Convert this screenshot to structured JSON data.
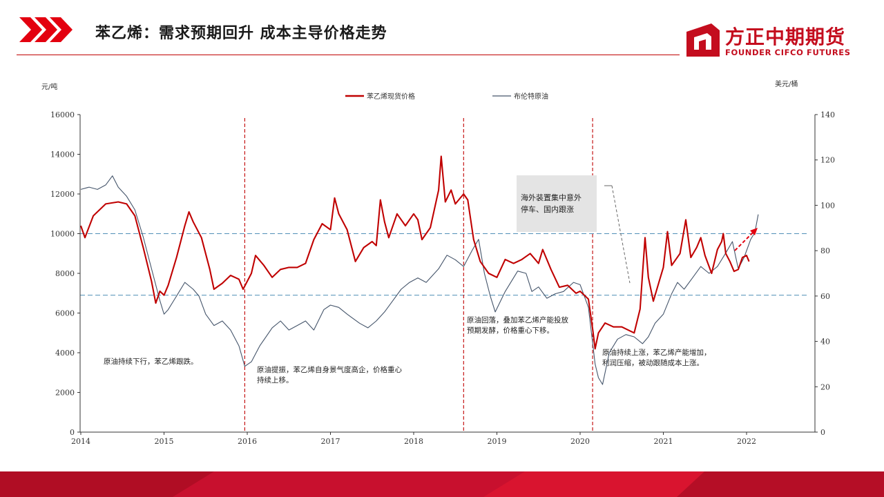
{
  "header": {
    "title": "苯乙烯：需求预期回升  成本主导价格走势",
    "brand_cn": "方正中期期货",
    "brand_en": "FOUNDER CIFCO FUTURES"
  },
  "colors": {
    "brand_red": "#c40d1e",
    "styrene_line": "#c00000",
    "brent_line": "#44546a",
    "event_line": "#c00000",
    "ref_line": "#4f8fb6",
    "callout_bg": "#e4e4e4"
  },
  "chart_data": {
    "type": "line",
    "left_unit": "元/吨",
    "right_unit": "美元/桶",
    "x_ticks": [
      "2014",
      "2015",
      "2016",
      "2017",
      "2018",
      "2019",
      "2020",
      "2021",
      "2022"
    ],
    "left_ticks": [
      "0",
      "2000",
      "4000",
      "6000",
      "8000",
      "10000",
      "12000",
      "14000",
      "16000"
    ],
    "right_ticks": [
      "0",
      "20",
      "40",
      "60",
      "80",
      "100",
      "120",
      "140"
    ],
    "xlim": [
      2014,
      2022.85
    ],
    "ylim_left": [
      0,
      16000
    ],
    "ylim_right": [
      0,
      140
    ],
    "grid": false,
    "legend_position": "top-center",
    "series": [
      {
        "name": "苯乙烯现货价格",
        "axis": "left",
        "points": [
          [
            2014.0,
            10400
          ],
          [
            2014.05,
            9800
          ],
          [
            2014.15,
            10900
          ],
          [
            2014.3,
            11500
          ],
          [
            2014.45,
            11600
          ],
          [
            2014.55,
            11500
          ],
          [
            2014.65,
            10900
          ],
          [
            2014.75,
            9300
          ],
          [
            2014.85,
            7600
          ],
          [
            2014.9,
            6500
          ],
          [
            2014.95,
            7100
          ],
          [
            2015.0,
            6900
          ],
          [
            2015.05,
            7400
          ],
          [
            2015.15,
            8800
          ],
          [
            2015.25,
            10400
          ],
          [
            2015.3,
            11100
          ],
          [
            2015.35,
            10600
          ],
          [
            2015.45,
            9800
          ],
          [
            2015.55,
            8200
          ],
          [
            2015.6,
            7200
          ],
          [
            2015.7,
            7500
          ],
          [
            2015.8,
            7900
          ],
          [
            2015.9,
            7700
          ],
          [
            2015.95,
            7200
          ],
          [
            2016.0,
            7600
          ],
          [
            2016.05,
            8000
          ],
          [
            2016.1,
            8900
          ],
          [
            2016.2,
            8400
          ],
          [
            2016.3,
            7800
          ],
          [
            2016.4,
            8200
          ],
          [
            2016.5,
            8300
          ],
          [
            2016.6,
            8300
          ],
          [
            2016.7,
            8500
          ],
          [
            2016.8,
            9700
          ],
          [
            2016.9,
            10500
          ],
          [
            2017.0,
            10200
          ],
          [
            2017.05,
            11800
          ],
          [
            2017.1,
            11000
          ],
          [
            2017.2,
            10200
          ],
          [
            2017.3,
            8600
          ],
          [
            2017.4,
            9300
          ],
          [
            2017.5,
            9600
          ],
          [
            2017.55,
            9400
          ],
          [
            2017.6,
            11700
          ],
          [
            2017.65,
            10600
          ],
          [
            2017.7,
            9800
          ],
          [
            2017.8,
            11000
          ],
          [
            2017.9,
            10400
          ],
          [
            2018.0,
            11000
          ],
          [
            2018.05,
            10700
          ],
          [
            2018.1,
            9700
          ],
          [
            2018.2,
            10300
          ],
          [
            2018.3,
            12200
          ],
          [
            2018.33,
            13900
          ],
          [
            2018.38,
            11600
          ],
          [
            2018.45,
            12200
          ],
          [
            2018.5,
            11500
          ],
          [
            2018.6,
            12000
          ],
          [
            2018.65,
            11700
          ],
          [
            2018.72,
            9700
          ],
          [
            2018.8,
            8600
          ],
          [
            2018.9,
            8000
          ],
          [
            2019.0,
            7800
          ],
          [
            2019.1,
            8700
          ],
          [
            2019.2,
            8500
          ],
          [
            2019.3,
            8700
          ],
          [
            2019.4,
            9000
          ],
          [
            2019.5,
            8500
          ],
          [
            2019.55,
            9200
          ],
          [
            2019.65,
            8200
          ],
          [
            2019.75,
            7300
          ],
          [
            2019.85,
            7400
          ],
          [
            2019.95,
            7000
          ],
          [
            2020.0,
            7100
          ],
          [
            2020.1,
            6700
          ],
          [
            2020.15,
            5200
          ],
          [
            2020.18,
            4200
          ],
          [
            2020.22,
            5000
          ],
          [
            2020.3,
            5500
          ],
          [
            2020.4,
            5300
          ],
          [
            2020.5,
            5300
          ],
          [
            2020.6,
            5100
          ],
          [
            2020.65,
            5000
          ],
          [
            2020.72,
            6200
          ],
          [
            2020.78,
            9800
          ],
          [
            2020.82,
            7800
          ],
          [
            2020.88,
            6600
          ],
          [
            2020.95,
            7600
          ],
          [
            2021.0,
            8300
          ],
          [
            2021.05,
            10100
          ],
          [
            2021.1,
            8400
          ],
          [
            2021.2,
            9000
          ],
          [
            2021.27,
            10700
          ],
          [
            2021.33,
            8800
          ],
          [
            2021.4,
            9300
          ],
          [
            2021.45,
            9800
          ],
          [
            2021.5,
            8900
          ],
          [
            2021.58,
            8000
          ],
          [
            2021.65,
            9200
          ],
          [
            2021.7,
            9600
          ],
          [
            2021.72,
            10000
          ],
          [
            2021.75,
            9000
          ],
          [
            2021.8,
            8600
          ],
          [
            2021.85,
            8100
          ],
          [
            2021.9,
            8200
          ],
          [
            2021.95,
            8800
          ],
          [
            2022.0,
            8900
          ],
          [
            2022.03,
            8600
          ]
        ]
      },
      {
        "name": "布伦特原油",
        "axis": "right",
        "points": [
          [
            2014.0,
            107
          ],
          [
            2014.1,
            108
          ],
          [
            2014.2,
            107
          ],
          [
            2014.3,
            109
          ],
          [
            2014.38,
            113
          ],
          [
            2014.45,
            108
          ],
          [
            2014.55,
            104
          ],
          [
            2014.65,
            98
          ],
          [
            2014.75,
            86
          ],
          [
            2014.85,
            72
          ],
          [
            2014.95,
            58
          ],
          [
            2015.0,
            52
          ],
          [
            2015.05,
            54
          ],
          [
            2015.15,
            60
          ],
          [
            2015.25,
            66
          ],
          [
            2015.35,
            63
          ],
          [
            2015.42,
            60
          ],
          [
            2015.5,
            52
          ],
          [
            2015.6,
            47
          ],
          [
            2015.7,
            49
          ],
          [
            2015.8,
            45
          ],
          [
            2015.9,
            38
          ],
          [
            2015.97,
            29
          ],
          [
            2016.05,
            31
          ],
          [
            2016.15,
            38
          ],
          [
            2016.3,
            46
          ],
          [
            2016.4,
            49
          ],
          [
            2016.5,
            45
          ],
          [
            2016.6,
            47
          ],
          [
            2016.7,
            49
          ],
          [
            2016.8,
            45
          ],
          [
            2016.92,
            54
          ],
          [
            2017.0,
            56
          ],
          [
            2017.1,
            55
          ],
          [
            2017.2,
            52
          ],
          [
            2017.35,
            48
          ],
          [
            2017.45,
            46
          ],
          [
            2017.55,
            49
          ],
          [
            2017.65,
            53
          ],
          [
            2017.75,
            58
          ],
          [
            2017.85,
            63
          ],
          [
            2017.95,
            66
          ],
          [
            2018.05,
            68
          ],
          [
            2018.15,
            66
          ],
          [
            2018.3,
            72
          ],
          [
            2018.4,
            78
          ],
          [
            2018.5,
            76
          ],
          [
            2018.6,
            73
          ],
          [
            2018.7,
            80
          ],
          [
            2018.78,
            85
          ],
          [
            2018.85,
            70
          ],
          [
            2018.92,
            60
          ],
          [
            2018.98,
            53
          ],
          [
            2019.1,
            62
          ],
          [
            2019.25,
            71
          ],
          [
            2019.35,
            70
          ],
          [
            2019.42,
            62
          ],
          [
            2019.5,
            64
          ],
          [
            2019.6,
            59
          ],
          [
            2019.7,
            61
          ],
          [
            2019.8,
            62
          ],
          [
            2019.92,
            66
          ],
          [
            2020.0,
            65
          ],
          [
            2020.1,
            55
          ],
          [
            2020.18,
            30
          ],
          [
            2020.22,
            24
          ],
          [
            2020.27,
            21
          ],
          [
            2020.35,
            35
          ],
          [
            2020.45,
            41
          ],
          [
            2020.55,
            43
          ],
          [
            2020.65,
            42
          ],
          [
            2020.75,
            39
          ],
          [
            2020.82,
            42
          ],
          [
            2020.9,
            48
          ],
          [
            2021.0,
            52
          ],
          [
            2021.1,
            61
          ],
          [
            2021.17,
            66
          ],
          [
            2021.25,
            63
          ],
          [
            2021.35,
            68
          ],
          [
            2021.45,
            73
          ],
          [
            2021.55,
            70
          ],
          [
            2021.65,
            73
          ],
          [
            2021.75,
            79
          ],
          [
            2021.83,
            84
          ],
          [
            2021.9,
            72
          ],
          [
            2021.97,
            77
          ],
          [
            2022.05,
            85
          ],
          [
            2022.1,
            88
          ],
          [
            2022.14,
            96
          ]
        ]
      }
    ],
    "reference_lines": [
      {
        "axis": "left",
        "value": 10000
      },
      {
        "axis": "left",
        "value": 6900
      }
    ],
    "event_lines": [
      2015.97,
      2018.6,
      2020.15
    ],
    "annotations": [
      {
        "text_lines": [
          "原油持续下行，苯乙烯跟跌。"
        ]
      },
      {
        "text_lines": [
          "原油提振，苯乙烯自身景气度高企，价格重心",
          "持续上移。"
        ]
      },
      {
        "text_lines": [
          "原油回落，叠加苯乙烯产能投放",
          "预期发酵，价格重心下移。"
        ]
      },
      {
        "text_lines": [
          "原油持续上涨，苯乙烯产能增加，",
          "利润压缩，被动跟随成本上涨。"
        ]
      }
    ],
    "callout": {
      "text_lines": [
        "海外装置集中意外",
        "停车、国内跟涨"
      ]
    }
  }
}
